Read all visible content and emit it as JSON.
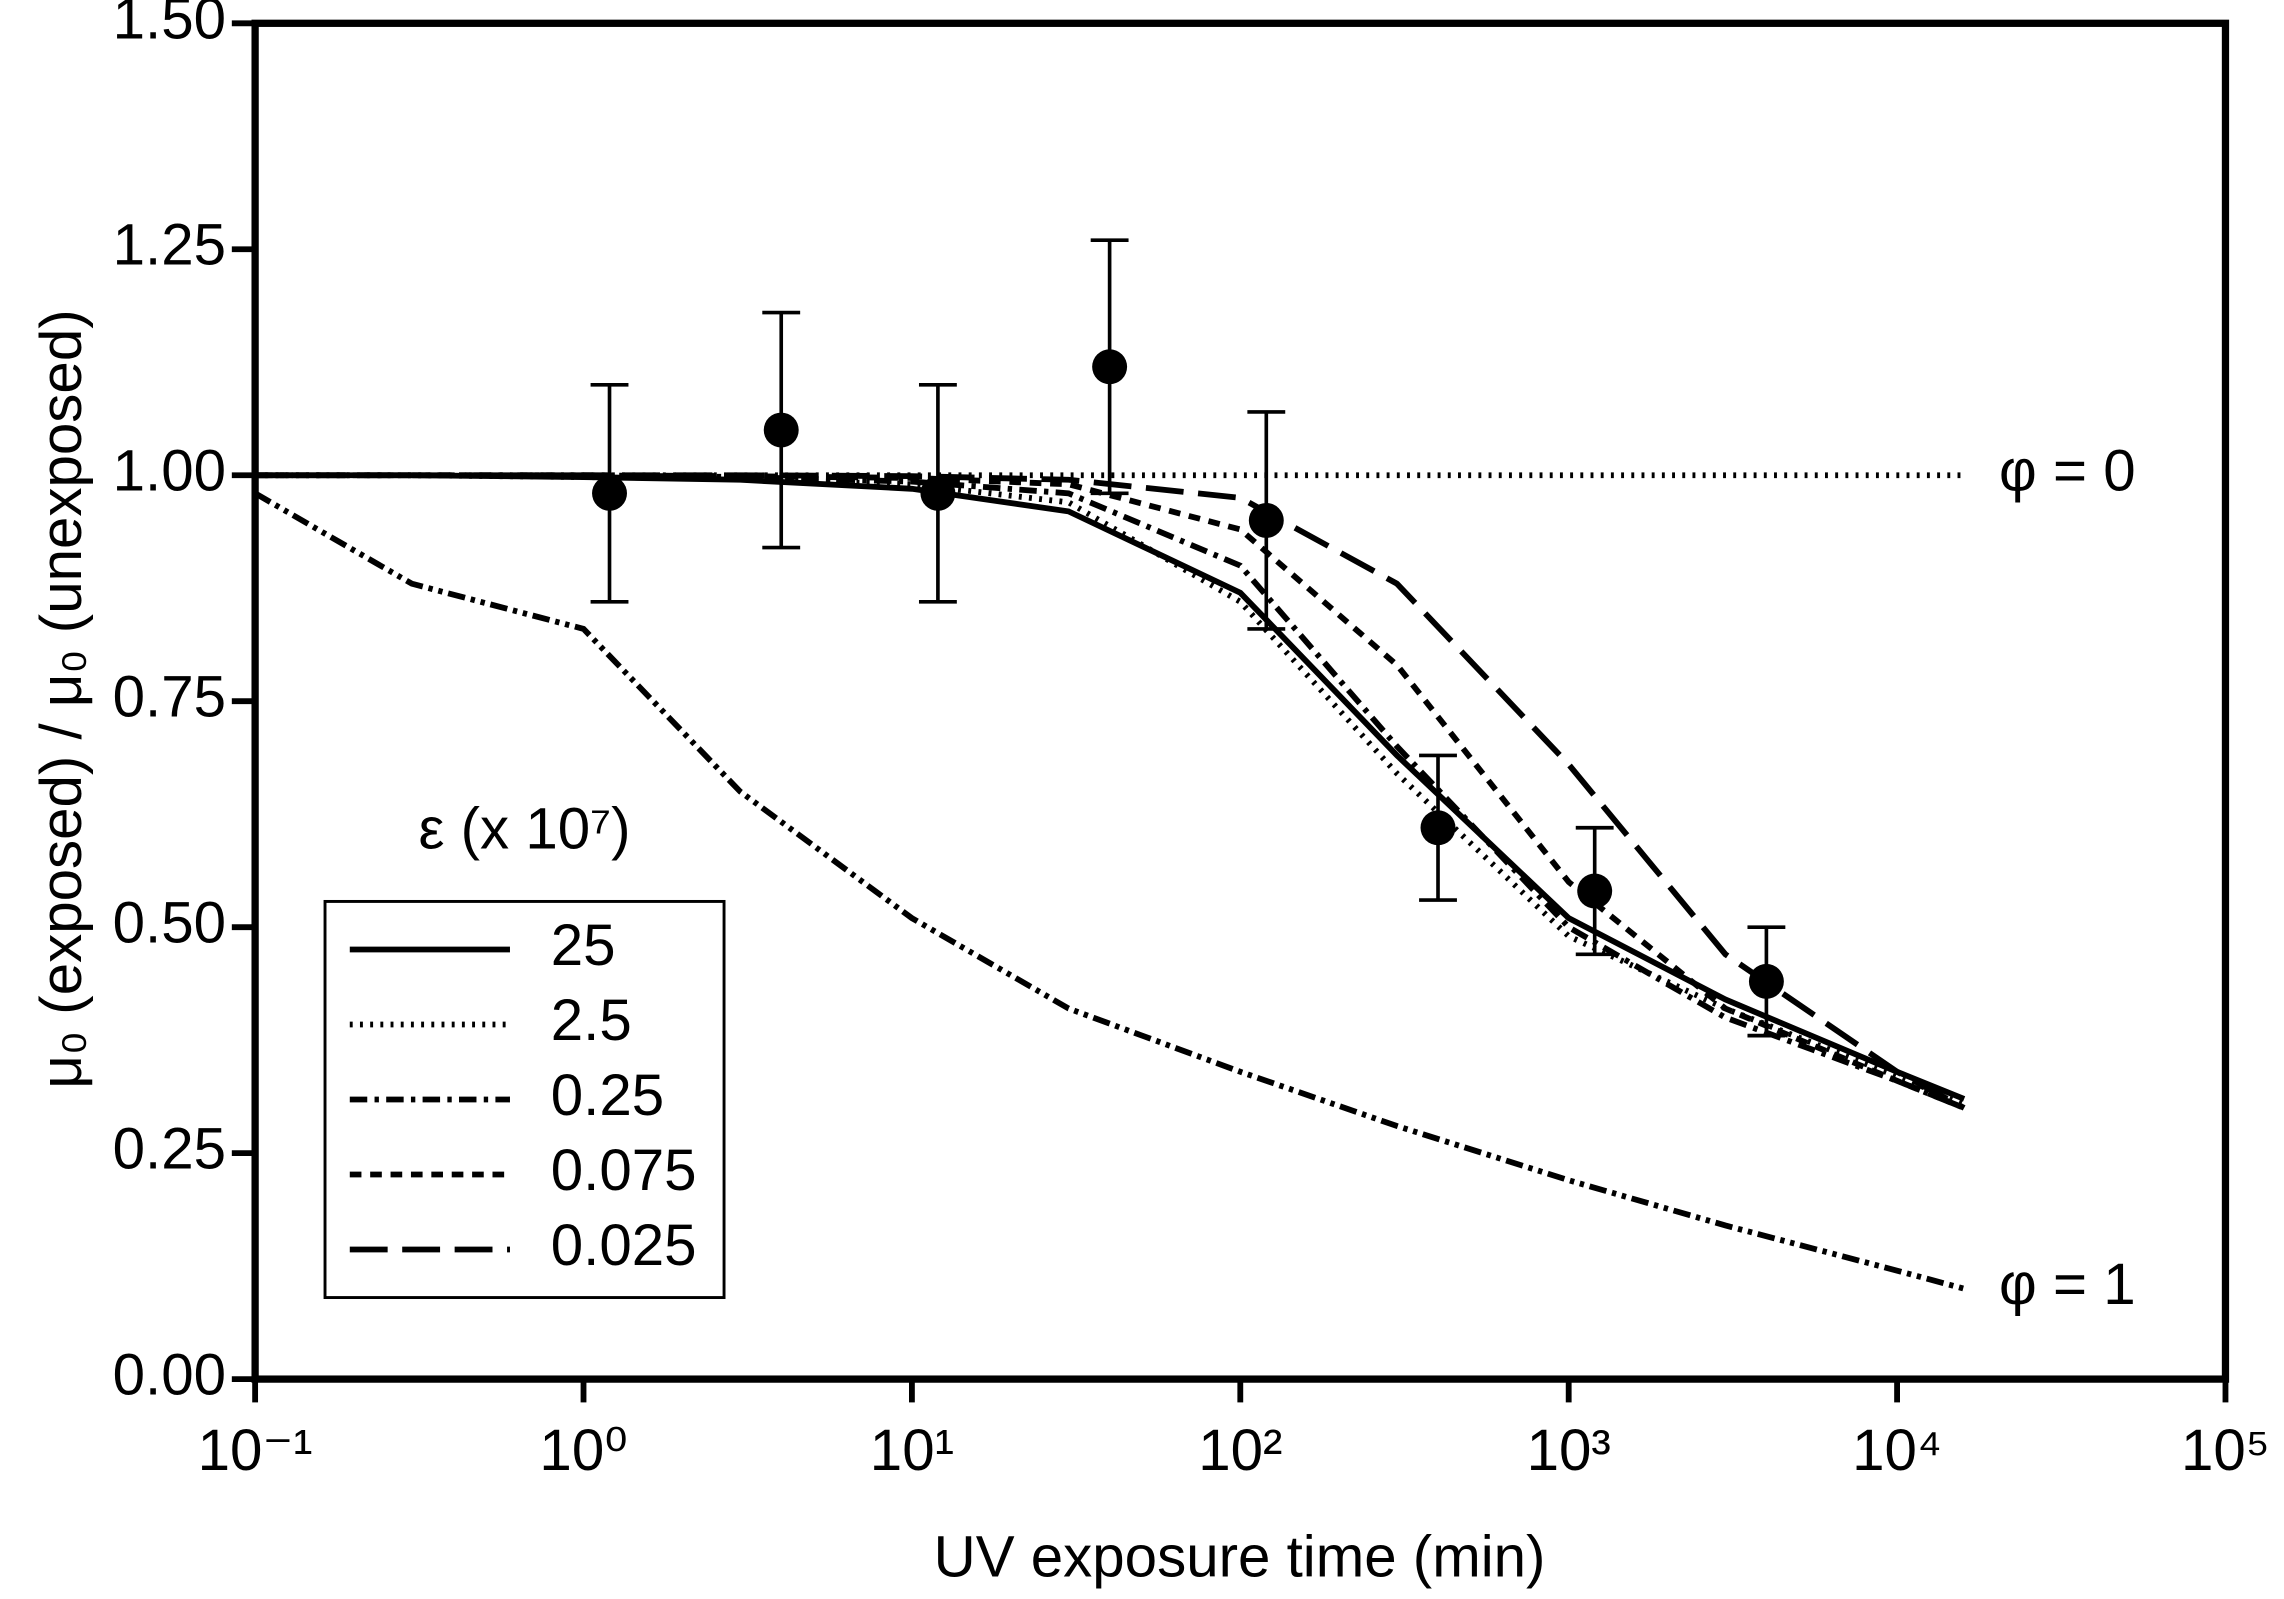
{
  "chart_data": {
    "type": "line",
    "x_label": "UV exposure time (min)",
    "y_label": "μ₀ (exposed) / μ₀ (unexposed)",
    "legend_title": "ε (x 10⁷)",
    "x_scale": "log",
    "xlim": [
      0.1,
      100000
    ],
    "xticks": [
      {
        "value": 0.1,
        "label": "10⁻¹"
      },
      {
        "value": 1,
        "label": "10⁰"
      },
      {
        "value": 10,
        "label": "10¹"
      },
      {
        "value": 100,
        "label": "10²"
      },
      {
        "value": 1000,
        "label": "10³"
      },
      {
        "value": 10000,
        "label": "10⁴"
      },
      {
        "value": 100000,
        "label": "10⁵"
      }
    ],
    "ylim": [
      0,
      1.5
    ],
    "yticks": [
      {
        "value": 0,
        "label": "0.00"
      },
      {
        "value": 0.25,
        "label": "0.25"
      },
      {
        "value": 0.5,
        "label": "0.50"
      },
      {
        "value": 0.75,
        "label": "0.75"
      },
      {
        "value": 1,
        "label": "1.00"
      },
      {
        "value": 1.25,
        "label": "1.25"
      },
      {
        "value": 1.5,
        "label": "1.50"
      }
    ],
    "x": [
      0.1,
      0.3,
      1,
      3,
      10,
      30,
      100,
      300,
      1000,
      3000,
      10000,
      16000
    ],
    "series": [
      {
        "name": "25",
        "color": "#000000",
        "style": "solid",
        "values": [
          1.0,
          1.0,
          0.998,
          0.995,
          0.985,
          0.96,
          0.87,
          0.69,
          0.51,
          0.42,
          0.34,
          0.31
        ]
      },
      {
        "name": "2.5",
        "color": "#000000",
        "style": "dotted",
        "values": [
          1.0,
          1.0,
          0.998,
          0.996,
          0.99,
          0.97,
          0.86,
          0.67,
          0.49,
          0.41,
          0.335,
          0.305
        ]
      },
      {
        "name": "0.25",
        "color": "#000000",
        "style": "dashdot",
        "values": [
          1.0,
          1.0,
          1.0,
          0.998,
          0.993,
          0.98,
          0.9,
          0.7,
          0.5,
          0.4,
          0.33,
          0.3
        ]
      },
      {
        "name": "0.075",
        "color": "#000000",
        "style": "shortdash",
        "values": [
          1.0,
          1.0,
          1.0,
          0.999,
          0.997,
          0.99,
          0.94,
          0.79,
          0.55,
          0.41,
          0.33,
          0.3
        ]
      },
      {
        "name": "0.025",
        "color": "#000000",
        "style": "longdash",
        "values": [
          1.0,
          1.0,
          1.0,
          1.0,
          0.999,
          0.995,
          0.975,
          0.88,
          0.68,
          0.47,
          0.34,
          0.3
        ]
      }
    ],
    "reference_curves": [
      {
        "label": "φ = 0",
        "color": "#000000",
        "style": "dotted",
        "values": [
          1.0,
          1.0,
          1.0,
          1.0,
          1.0,
          1.0,
          1.0,
          1.0,
          1.0,
          1.0,
          1.0,
          1.0
        ]
      },
      {
        "label": "φ = 1",
        "color": "#000000",
        "style": "dashdotdot",
        "values": [
          0.98,
          0.88,
          0.83,
          0.65,
          0.51,
          0.41,
          0.34,
          0.28,
          0.22,
          0.17,
          0.12,
          0.1
        ]
      }
    ],
    "points": {
      "color": "#000000",
      "x": [
        1.2,
        4,
        12,
        40,
        120,
        400,
        1200,
        4000
      ],
      "values": [
        0.98,
        1.05,
        0.98,
        1.12,
        0.95,
        0.61,
        0.54,
        0.44
      ],
      "errors": [
        0.12,
        0.13,
        0.12,
        0.14,
        0.12,
        0.08,
        0.07,
        0.06
      ]
    }
  }
}
